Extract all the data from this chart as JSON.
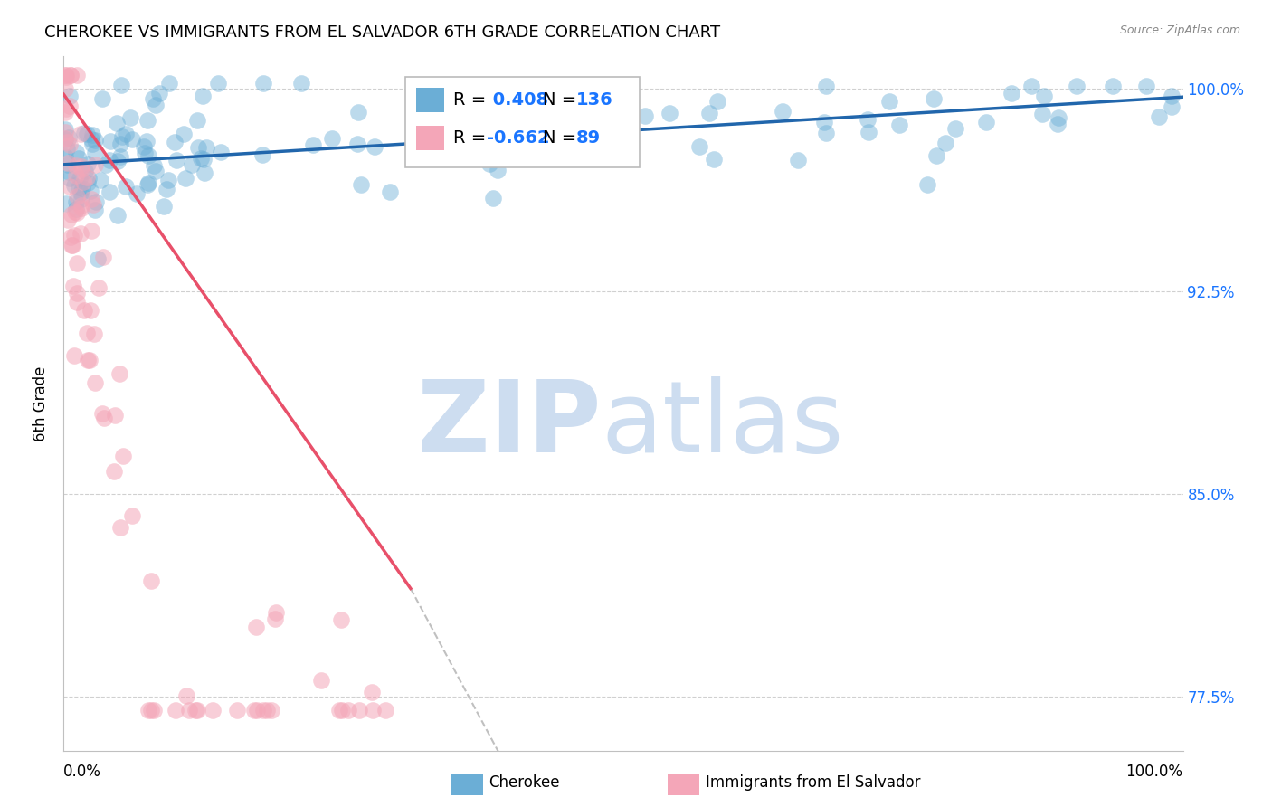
{
  "title": "CHEROKEE VS IMMIGRANTS FROM EL SALVADOR 6TH GRADE CORRELATION CHART",
  "source": "Source: ZipAtlas.com",
  "ylabel": "6th Grade",
  "ytick_labels": [
    "77.5%",
    "85.0%",
    "92.5%",
    "100.0%"
  ],
  "ytick_values": [
    0.775,
    0.85,
    0.925,
    1.0
  ],
  "xlim": [
    0.0,
    1.0
  ],
  "ylim": [
    0.755,
    1.012
  ],
  "blue_R": 0.408,
  "blue_N": 136,
  "pink_R": -0.662,
  "pink_N": 89,
  "blue_color": "#6baed6",
  "blue_line_color": "#2166ac",
  "pink_color": "#f4a6b8",
  "pink_line_color": "#e8506a",
  "watermark_color": "#cdddf0",
  "legend_label_blue": "Cherokee",
  "legend_label_pink": "Immigrants from El Salvador",
  "title_fontsize": 13,
  "source_fontsize": 9,
  "axis_label_fontsize": 10,
  "legend_fontsize": 14,
  "tick_label_fontsize": 12
}
